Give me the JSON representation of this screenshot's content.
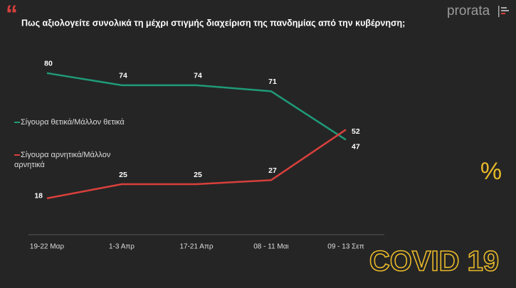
{
  "chart_data": {
    "type": "line",
    "title": "Πως αξιολογείτε συνολικά τη μέχρι στιγμής διαχείριση της πανδημίας από την κυβέρνηση;",
    "brand": "prorata",
    "symbol": "%",
    "badge": "COVID 19",
    "categories": [
      "19-22 Μαρ",
      "1-3 Απρ",
      "17-21 Απρ",
      "08 - 11 Μαι",
      "09 - 13 Σεπ"
    ],
    "series": [
      {
        "name": "Σίγουρα θετικά/Μάλλον θετικά",
        "color": "#1f9a78",
        "values": [
          80,
          74,
          74,
          71,
          47
        ]
      },
      {
        "name": "Σίγουρα αρνητικά/Μάλλον αρνητικά",
        "color": "#d9403c",
        "values": [
          18,
          25,
          25,
          27,
          52
        ]
      }
    ]
  }
}
